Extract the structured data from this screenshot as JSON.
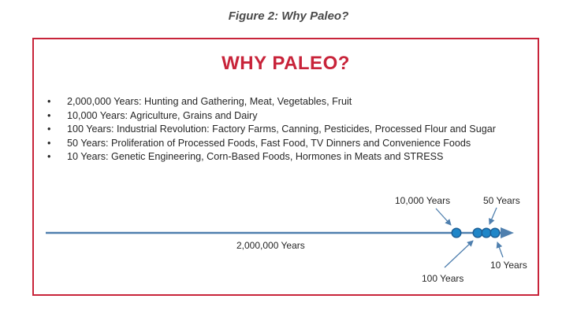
{
  "figure_caption": "Figure 2: Why Paleo?",
  "heading": "WHY PALEO?",
  "points": [
    "2,000,000 Years: Hunting and Gathering, Meat, Vegetables, Fruit",
    "10,000 Years: Agriculture, Grains and Dairy",
    "100 Years: Industrial Revolution: Factory Farms, Canning, Pesticides, Processed Flour and Sugar",
    "50 Years: Proliferation of Processed Foods, Fast Food, TV Dinners and Convenience Foods",
    "10 Years: Genetic Engineering, Corn-Based Foods, Hormones in Meats and STRESS"
  ],
  "bullet_char": "•",
  "timeline": {
    "span_label": "2,000,000 Years",
    "markers": [
      "10,000 Years",
      "100 Years",
      "50 Years",
      "10 Years"
    ]
  },
  "colors": {
    "accent_red": "#c8243a",
    "timeline_blue": "#4f7fae",
    "marker_fill": "#1f86c8",
    "marker_stroke": "#1d5f96"
  }
}
